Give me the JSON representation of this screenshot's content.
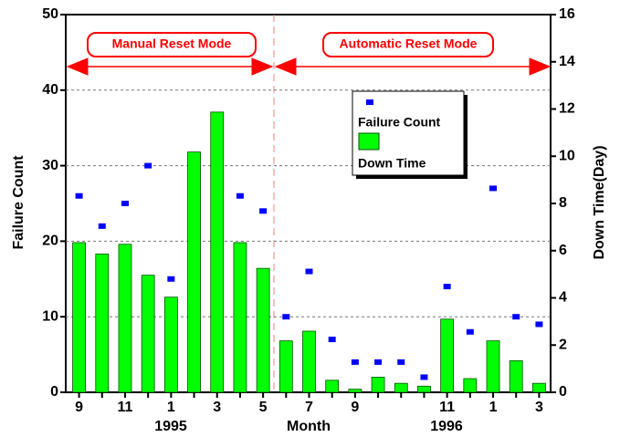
{
  "chart_data": {
    "type": "bar",
    "xlabel": "Month",
    "ylabel": "Failure Count",
    "y2label": "Down Time(Day)",
    "year_labels": [
      "1995",
      "1996"
    ],
    "annotations": [
      "Manual Reset Mode",
      "Automatic Reset Mode"
    ],
    "categories": [
      "9",
      null,
      "11",
      null,
      "1",
      null,
      "3",
      null,
      "5",
      null,
      "7",
      null,
      "9",
      null,
      null,
      null,
      "11",
      null,
      "1",
      null,
      "3"
    ],
    "series": [
      {
        "name": "Failure Count",
        "type": "scatter",
        "color": "#0000ff",
        "values": [
          26,
          22,
          25,
          30,
          15,
          null,
          null,
          26,
          24,
          10,
          16,
          7,
          4,
          4,
          4,
          2,
          14,
          8,
          27,
          10,
          9
        ]
      },
      {
        "name": "Down Time",
        "type": "bar",
        "axis": "y2",
        "color": "#00ff00",
        "values": [
          6.34,
          5.86,
          6.27,
          4.96,
          4.03,
          10.18,
          11.87,
          6.34,
          5.25,
          2.18,
          2.59,
          0.51,
          0.13,
          0.64,
          0.38,
          0.26,
          3.1,
          0.58,
          2.18,
          1.34,
          0.38
        ]
      }
    ],
    "ylim": [
      0,
      50
    ],
    "yticks": [
      0,
      10,
      20,
      30,
      40,
      50
    ],
    "y2lim": [
      0,
      16
    ],
    "y2ticks": [
      0,
      2,
      4,
      6,
      8,
      10,
      12,
      14,
      16
    ],
    "grid": true
  }
}
